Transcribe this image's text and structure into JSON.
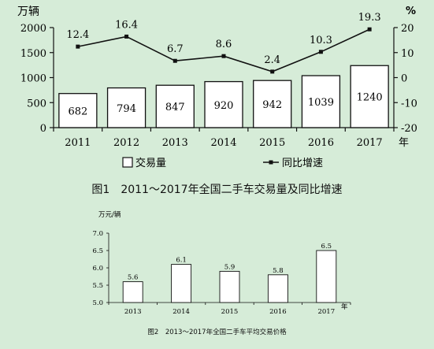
{
  "chart_data": [
    {
      "type": "bar+line",
      "title": "图1　2011～2017年全国二手车交易量及同比增速",
      "categories": [
        "2011",
        "2012",
        "2013",
        "2014",
        "2015",
        "2016",
        "2017"
      ],
      "x_unit": "年",
      "left_axis": {
        "label": "万辆",
        "ylim": [
          0,
          2000
        ],
        "ticks": [
          "0",
          "500",
          "1000",
          "1500",
          "2000"
        ]
      },
      "right_axis": {
        "label": "%",
        "ylim": [
          -20,
          20
        ],
        "ticks": [
          "-20",
          "-10",
          "0",
          "10",
          "20"
        ]
      },
      "series": [
        {
          "name": "交易量",
          "type": "bar",
          "axis": "left",
          "values": [
            682,
            794,
            847,
            920,
            942,
            1039,
            1240
          ],
          "labels": [
            "682",
            "794",
            "847",
            "920",
            "942",
            "1039",
            "1240"
          ]
        },
        {
          "name": "同比增速",
          "type": "line",
          "axis": "right",
          "values": [
            12.4,
            16.4,
            6.7,
            8.6,
            2.4,
            10.3,
            19.3
          ],
          "labels": [
            "12.4",
            "16.4",
            "6.7",
            "8.6",
            "2.4",
            "10.3",
            "19.3"
          ]
        }
      ],
      "legend": [
        "交易量",
        "同比增速"
      ],
      "legend_position": "bottom",
      "grid": false
    },
    {
      "type": "bar",
      "title": "图2　2013～2017年全国二手车平均交易价格",
      "categories": [
        "2013",
        "2014",
        "2015",
        "2016",
        "2017"
      ],
      "x_unit": "年",
      "ylabel": "万元/辆",
      "ylim": [
        5.0,
        7.0
      ],
      "ticks": [
        "5.0",
        "5.5",
        "6.0",
        "6.5",
        "7.0"
      ],
      "values": [
        5.6,
        6.1,
        5.9,
        5.8,
        6.5
      ],
      "labels": [
        "5.6",
        "6.1",
        "5.9",
        "5.8",
        "6.5"
      ],
      "grid": false
    }
  ],
  "colors": {
    "background": "#d6ecd8",
    "bar_fill": "#ffffff",
    "stroke": "#111111"
  }
}
